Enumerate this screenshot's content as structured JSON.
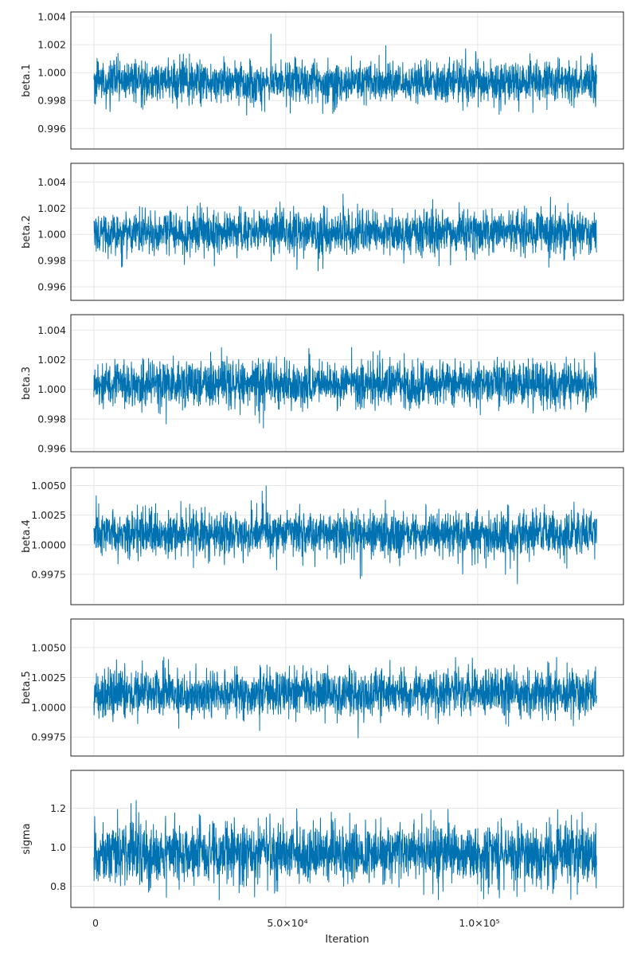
{
  "chart_data": {
    "type": "line",
    "xlabel": "Iteration",
    "xlim": [
      -6000,
      138000
    ],
    "x_ticks": [
      {
        "value": 0,
        "label": "0"
      },
      {
        "value": 50000,
        "label": "5.0×10⁴"
      },
      {
        "value": 100000,
        "label": "1.0×10⁵"
      }
    ],
    "iterations": [
      1,
      131000
    ],
    "grid": true,
    "line_color": "#0072b2",
    "panels": [
      {
        "ylabel": "beta.1",
        "mean": 0.99935,
        "sd": 0.00072,
        "ylim": [
          0.99453,
          1.00435
        ],
        "y_ticks": [
          {
            "value": 0.996,
            "label": "0.996"
          },
          {
            "value": 0.998,
            "label": "0.998"
          },
          {
            "value": 1.0,
            "label": "1.000"
          },
          {
            "value": 1.002,
            "label": "1.002"
          },
          {
            "value": 1.004,
            "label": "1.004"
          }
        ]
      },
      {
        "ylabel": "beta.2",
        "mean": 1.00015,
        "sd": 0.0008,
        "ylim": [
          0.99497,
          1.00542
        ],
        "y_ticks": [
          {
            "value": 0.996,
            "label": "0.996"
          },
          {
            "value": 0.998,
            "label": "0.998"
          },
          {
            "value": 1.0,
            "label": "1.000"
          },
          {
            "value": 1.002,
            "label": "1.002"
          },
          {
            "value": 1.004,
            "label": "1.004"
          }
        ]
      },
      {
        "ylabel": "beta.3",
        "mean": 1.00035,
        "sd": 0.00076,
        "ylim": [
          0.99579,
          1.00504
        ],
        "y_ticks": [
          {
            "value": 0.996,
            "label": "0.996"
          },
          {
            "value": 0.998,
            "label": "0.998"
          },
          {
            "value": 1.0,
            "label": "1.000"
          },
          {
            "value": 1.002,
            "label": "1.002"
          },
          {
            "value": 1.004,
            "label": "1.004"
          }
        ]
      },
      {
        "ylabel": "beta.4",
        "mean": 1.0009,
        "sd": 0.00095,
        "ylim": [
          0.99493,
          1.00652
        ],
        "y_ticks": [
          {
            "value": 0.9975,
            "label": "0.9975"
          },
          {
            "value": 1.0,
            "label": "1.0000"
          },
          {
            "value": 1.0025,
            "label": "1.0025"
          },
          {
            "value": 1.005,
            "label": "1.0050"
          }
        ]
      },
      {
        "ylabel": "beta.5",
        "mean": 1.0012,
        "sd": 0.00095,
        "ylim": [
          0.99591,
          1.0074
        ],
        "y_ticks": [
          {
            "value": 0.9975,
            "label": "0.9975"
          },
          {
            "value": 1.0,
            "label": "1.0000"
          },
          {
            "value": 1.0025,
            "label": "1.0025"
          },
          {
            "value": 1.005,
            "label": "1.0050"
          }
        ]
      },
      {
        "ylabel": "sigma",
        "mean": 0.97,
        "sd": 0.075,
        "ylim": [
          0.692,
          1.394
        ],
        "y_ticks": [
          {
            "value": 0.8,
            "label": "0.8"
          },
          {
            "value": 1.0,
            "label": "1.0"
          },
          {
            "value": 1.2,
            "label": "1.2"
          }
        ]
      }
    ]
  }
}
